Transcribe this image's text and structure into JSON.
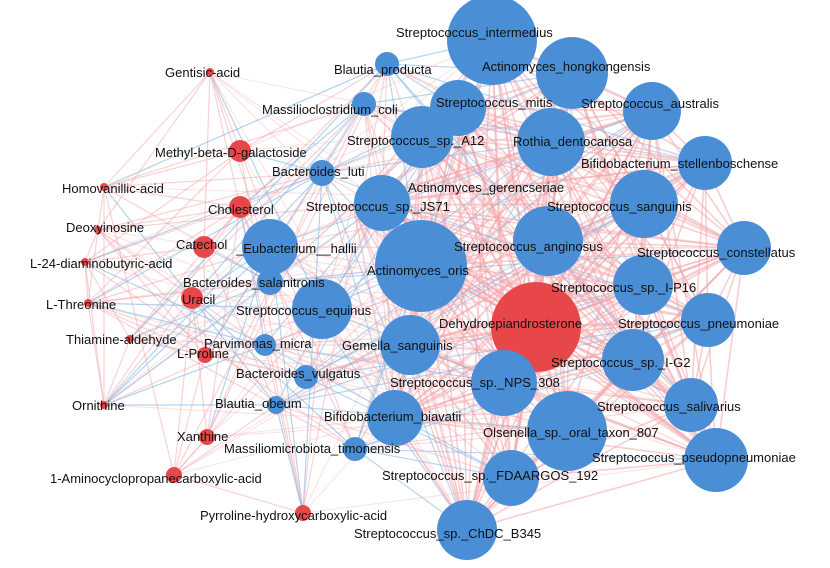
{
  "colors": {
    "microbe_node": "#4a8fd6",
    "metabolite_node": "#e8474a",
    "positive_edge": "#f4a6ab",
    "negative_edge": "#7fb5e6",
    "label": "#111111"
  },
  "nodes": [
    {
      "id": "s_intermedius",
      "label": "Streptococcus_intermedius",
      "type": "microbe",
      "size": "large"
    },
    {
      "id": "a_hongkongensis",
      "label": "Actinomyces_hongkongensis",
      "type": "microbe",
      "size": "large"
    },
    {
      "id": "b_producta",
      "label": "Blautia_producta",
      "type": "microbe",
      "size": "small"
    },
    {
      "id": "s_mitis",
      "label": "Streptococcus_mitis",
      "type": "microbe",
      "size": "medium"
    },
    {
      "id": "s_australis",
      "label": "Streptococcus_australis",
      "type": "microbe",
      "size": "medium"
    },
    {
      "id": "m_coli",
      "label": "Massilioclostridium_coli",
      "type": "microbe",
      "size": "small"
    },
    {
      "id": "s_a12",
      "label": "Streptococcus_sp._A12",
      "type": "microbe",
      "size": "medium"
    },
    {
      "id": "r_dentocariosa",
      "label": "Rothia_dentocariosa",
      "type": "microbe",
      "size": "large"
    },
    {
      "id": "b_stellenboschense",
      "label": "Bifidobacterium_stellenboschense",
      "type": "microbe",
      "size": "medium"
    },
    {
      "id": "b_luti",
      "label": "Bacteroides_luti",
      "type": "microbe",
      "size": "small"
    },
    {
      "id": "a_gerencseriae",
      "label": "Actinomyces_gerencseriae",
      "type": "microbe",
      "size": "large"
    },
    {
      "id": "s_js71",
      "label": "Streptococcus_sp._JS71",
      "type": "microbe",
      "size": "medium"
    },
    {
      "id": "s_sanguinis",
      "label": "Streptococcus_sanguinis",
      "type": "microbe",
      "size": "large"
    },
    {
      "id": "e_hallii",
      "label": "_Eubacterium__hallii",
      "type": "microbe",
      "size": "medium"
    },
    {
      "id": "s_anginosus",
      "label": "Streptococcus_anginosus",
      "type": "microbe",
      "size": "large"
    },
    {
      "id": "s_constellatus",
      "label": "Streptococcus_constellatus",
      "type": "microbe",
      "size": "medium"
    },
    {
      "id": "a_oris",
      "label": "Actinomyces_oris",
      "type": "microbe",
      "size": "xlarge"
    },
    {
      "id": "b_salanitronis",
      "label": "Bacteroides_salanitronis",
      "type": "microbe",
      "size": "small"
    },
    {
      "id": "s_ip16",
      "label": "Streptococcus_sp._I-P16",
      "type": "microbe",
      "size": "medium"
    },
    {
      "id": "s_equinus",
      "label": "Streptococcus_equinus",
      "type": "microbe",
      "size": "medium"
    },
    {
      "id": "dhea",
      "label": "Dehydroepiandrosterone",
      "type": "metabolite",
      "size": "xlarge"
    },
    {
      "id": "s_pneumoniae",
      "label": "Streptococcus_pneumoniae",
      "type": "microbe",
      "size": "medium"
    },
    {
      "id": "p_micra",
      "label": "Parvimonas_micra",
      "type": "microbe",
      "size": "small"
    },
    {
      "id": "g_sanguinis",
      "label": "Gemella_sanguinis",
      "type": "microbe",
      "size": "medium"
    },
    {
      "id": "s_ig2",
      "label": "Streptococcus_sp._I-G2",
      "type": "microbe",
      "size": "medium"
    },
    {
      "id": "b_vulgatus",
      "label": "Bacteroides_vulgatus",
      "type": "microbe",
      "size": "small"
    },
    {
      "id": "s_nps308",
      "label": "Streptococcus_sp._NPS_308",
      "type": "microbe",
      "size": "large"
    },
    {
      "id": "b_obeum",
      "label": "Blautia_obeum",
      "type": "microbe",
      "size": "tiny"
    },
    {
      "id": "s_salivarius",
      "label": "Streptococcus_salivarius",
      "type": "microbe",
      "size": "medium"
    },
    {
      "id": "b_biavatii",
      "label": "Bifidobacterium_biavatii",
      "type": "microbe",
      "size": "medium"
    },
    {
      "id": "o_807",
      "label": "Olsenella_sp._oral_taxon_807",
      "type": "microbe",
      "size": "large"
    },
    {
      "id": "m_timonensis",
      "label": "Massiliomicrobiota_timonensis",
      "type": "microbe",
      "size": "small"
    },
    {
      "id": "s_pseudopneumoniae",
      "label": "Streptococcus_pseudopneumoniae",
      "type": "microbe",
      "size": "medium"
    },
    {
      "id": "s_fdaargos",
      "label": "Streptococcus_sp._FDAARGOS_192",
      "type": "microbe",
      "size": "medium"
    },
    {
      "id": "s_chdc",
      "label": "Streptococcus_sp._ChDC_B345",
      "type": "microbe",
      "size": "medium"
    },
    {
      "id": "gentisic",
      "label": "Gentisic-acid",
      "type": "metabolite",
      "size": "dot"
    },
    {
      "id": "methyl_gal",
      "label": "Methyl-beta-D-galactoside",
      "type": "metabolite",
      "size": "small"
    },
    {
      "id": "homovanillic",
      "label": "Homovanillic-acid",
      "type": "metabolite",
      "size": "dot"
    },
    {
      "id": "cholesterol",
      "label": "Cholesterol",
      "type": "metabolite",
      "size": "small"
    },
    {
      "id": "deoxyinosine",
      "label": "Deoxyinosine",
      "type": "metabolite",
      "size": "dot"
    },
    {
      "id": "catechol",
      "label": "Catechol",
      "type": "metabolite",
      "size": "small"
    },
    {
      "id": "l24",
      "label": "L-24-diaminobutyric-acid",
      "type": "metabolite",
      "size": "dot"
    },
    {
      "id": "uracil",
      "label": "Uracil",
      "type": "metabolite",
      "size": "small"
    },
    {
      "id": "l_threonine",
      "label": "L-Threonine",
      "type": "metabolite",
      "size": "dot"
    },
    {
      "id": "thiamine_ald",
      "label": "Thiamine-aldehyde",
      "type": "metabolite",
      "size": "dot"
    },
    {
      "id": "l_proline",
      "label": "L-Proline",
      "type": "metabolite",
      "size": "tiny"
    },
    {
      "id": "ornithine",
      "label": "Ornithine",
      "type": "metabolite",
      "size": "dot"
    },
    {
      "id": "xanthine",
      "label": "Xanthine",
      "type": "metabolite",
      "size": "tiny"
    },
    {
      "id": "aminocyclo",
      "label": "1-Aminocyclopropanecarboxylic-acid",
      "type": "metabolite",
      "size": "tiny"
    },
    {
      "id": "pyrroline",
      "label": "Pyrroline-hydroxycarboxylic-acid",
      "type": "metabolite",
      "size": "tiny"
    }
  ]
}
